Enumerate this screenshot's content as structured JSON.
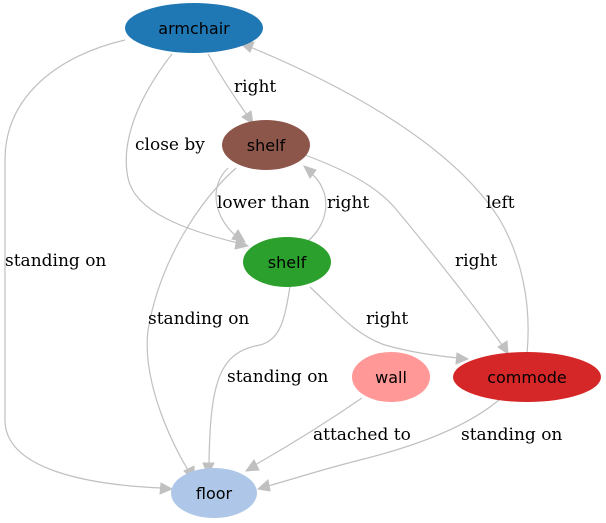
{
  "nodes": {
    "armchair": {
      "label": "armchair",
      "color": "#1f77b4"
    },
    "shelf_brown": {
      "label": "shelf",
      "color": "#8c564b"
    },
    "shelf_green": {
      "label": "shelf",
      "color": "#2ca02c"
    },
    "wall": {
      "label": "wall",
      "color": "#ff9896"
    },
    "commode": {
      "label": "commode",
      "color": "#d62728"
    },
    "floor": {
      "label": "floor",
      "color": "#aec7e8"
    }
  },
  "edges": [
    {
      "from": "armchair",
      "to": "floor",
      "label": "standing on"
    },
    {
      "from": "armchair",
      "to": "shelf_green",
      "label": "close by"
    },
    {
      "from": "armchair",
      "to": "shelf_brown",
      "label": "right"
    },
    {
      "from": "shelf_brown",
      "to": "shelf_green",
      "label": "lower than"
    },
    {
      "from": "shelf_green",
      "to": "shelf_brown",
      "label": "right"
    },
    {
      "from": "shelf_brown",
      "to": "floor",
      "label": "standing on"
    },
    {
      "from": "shelf_brown",
      "to": "commode",
      "label": "right"
    },
    {
      "from": "commode",
      "to": "armchair",
      "label": "left"
    },
    {
      "from": "shelf_green",
      "to": "commode",
      "label": "right"
    },
    {
      "from": "shelf_green",
      "to": "floor",
      "label": "standing on"
    },
    {
      "from": "wall",
      "to": "floor",
      "label": "attached to"
    },
    {
      "from": "commode",
      "to": "floor",
      "label": "standing on"
    }
  ],
  "edge_color": "#c0c0c0"
}
